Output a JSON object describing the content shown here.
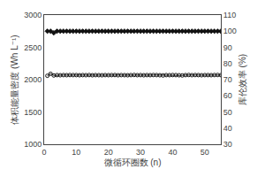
{
  "chart_data": {
    "type": "line",
    "xlabel": "微循环圈数 (n)",
    "ylabel": "体积能量密度 (Wh L⁻¹)",
    "y2label": "库伦效率 (%)",
    "x": [
      1,
      2,
      3,
      4,
      5,
      6,
      7,
      8,
      9,
      10,
      11,
      12,
      13,
      14,
      15,
      16,
      17,
      18,
      19,
      20,
      21,
      22,
      23,
      24,
      25,
      26,
      27,
      28,
      29,
      30,
      31,
      32,
      33,
      34,
      35,
      36,
      37,
      38,
      39,
      40,
      41,
      42,
      43,
      44,
      45,
      46,
      47,
      48,
      49,
      50,
      51,
      52,
      53,
      54,
      55
    ],
    "xlim": [
      0,
      55
    ],
    "xticks": [
      0,
      10,
      20,
      30,
      40,
      50
    ],
    "ylim": [
      1000,
      3000
    ],
    "yticks": [
      1000,
      1500,
      2000,
      2500,
      3000
    ],
    "y2lim": [
      30,
      110
    ],
    "y2ticks": [
      30,
      40,
      50,
      60,
      70,
      80,
      90,
      100,
      110
    ],
    "grid": false,
    "series": [
      {
        "color": "#111111",
        "marker": "circle-open",
        "values": [
          2060,
          2090,
          2065,
          2070,
          2068,
          2070,
          2069,
          2071,
          2070,
          2070,
          2068,
          2070,
          2069,
          2071,
          2068,
          2070,
          2069,
          2068,
          2070,
          2069,
          2070,
          2071,
          2068,
          2070,
          2069,
          2068,
          2070,
          2072,
          2069,
          2070,
          2068,
          2070,
          2069,
          2071,
          2070,
          2068,
          2065,
          2070,
          2069,
          2071,
          2070,
          2068,
          2065,
          2070,
          2072,
          2069,
          2071,
          2070,
          2068,
          2070,
          2070,
          2069,
          2071,
          2072,
          2070
        ]
      },
      {
        "color": "#111111",
        "marker": "diamond",
        "axis": "y2",
        "values": [
          100,
          100,
          99,
          100,
          100,
          100,
          100,
          100,
          100,
          100,
          100,
          100,
          100,
          100,
          100,
          100,
          100,
          100,
          100,
          100,
          100,
          100,
          100,
          100,
          100,
          100,
          100,
          100,
          100,
          100,
          100,
          100,
          100,
          100,
          100,
          100,
          100,
          100,
          100,
          100,
          100,
          100,
          100,
          100,
          100,
          100,
          100,
          100,
          100,
          100,
          100,
          100,
          100,
          100,
          100
        ]
      }
    ]
  }
}
